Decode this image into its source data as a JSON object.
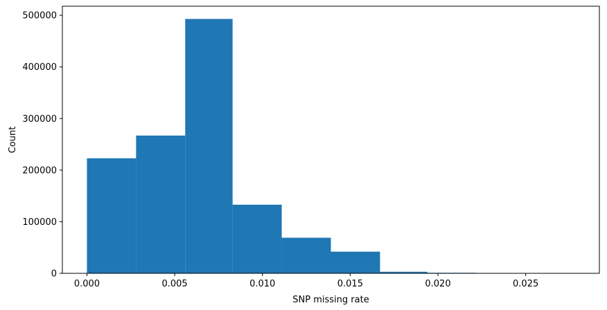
{
  "chart_data": {
    "type": "bar",
    "title": "",
    "xlabel": "SNP missing rate",
    "ylabel": "Count",
    "bar_color": "#1f77b4",
    "bins": [
      {
        "x0": 0.0,
        "x1": 0.0028,
        "count": 223000
      },
      {
        "x0": 0.0028,
        "x1": 0.0056,
        "count": 267000
      },
      {
        "x0": 0.0056,
        "x1": 0.0083,
        "count": 493000
      },
      {
        "x0": 0.0083,
        "x1": 0.0111,
        "count": 133000
      },
      {
        "x0": 0.0111,
        "x1": 0.0139,
        "count": 69000
      },
      {
        "x0": 0.0139,
        "x1": 0.0167,
        "count": 42000
      },
      {
        "x0": 0.0167,
        "x1": 0.0194,
        "count": 3000
      },
      {
        "x0": 0.0194,
        "x1": 0.0222,
        "count": 1000
      },
      {
        "x0": 0.0222,
        "x1": 0.025,
        "count": 200
      },
      {
        "x0": 0.025,
        "x1": 0.0278,
        "count": 100
      }
    ],
    "xlim": [
      -0.0014,
      0.0292
    ],
    "ylim": [
      0,
      517650
    ],
    "x_ticks": [
      0.0,
      0.005,
      0.01,
      0.015,
      0.02,
      0.025
    ],
    "x_tick_labels": [
      "0.000",
      "0.005",
      "0.010",
      "0.015",
      "0.020",
      "0.025"
    ],
    "y_ticks": [
      0,
      100000,
      200000,
      300000,
      400000,
      500000
    ],
    "y_tick_labels": [
      "0",
      "100000",
      "200000",
      "300000",
      "400000",
      "500000"
    ],
    "grid": false,
    "legend": "none"
  }
}
